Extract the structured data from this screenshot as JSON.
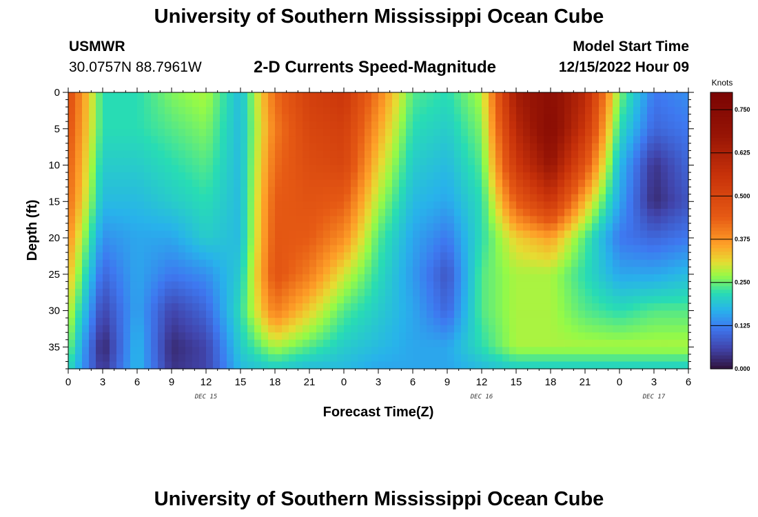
{
  "header": {
    "title": "University of Southern Mississippi Ocean Cube",
    "station": "USMWR",
    "coords": "30.0757N  88.7961W",
    "subtitle": "2-D Currents Speed-Magnitude",
    "model_label": "Model Start Time",
    "model_time": "12/15/2022 Hour 09"
  },
  "footer": {
    "title": "University of Southern Mississippi Ocean Cube"
  },
  "chart_data": {
    "type": "heatmap",
    "title": "2-D Currents Speed-Magnitude",
    "xlabel": "Forecast Time(Z)",
    "ylabel": "Depth (ft)",
    "x_hours_since_model_start": [
      0,
      3,
      6,
      9,
      12,
      15,
      18,
      21,
      24,
      27,
      30,
      33,
      36,
      39,
      42,
      45,
      48,
      51,
      54
    ],
    "x_tick_labels": [
      "0",
      "3",
      "6",
      "9",
      "12",
      "15",
      "18",
      "21",
      "0",
      "3",
      "6",
      "9",
      "12",
      "15",
      "18",
      "21",
      "0",
      "3",
      "6"
    ],
    "date_labels": [
      {
        "text": "DEC 15",
        "at_hour": 12
      },
      {
        "text": "DEC 16",
        "at_hour": 36
      },
      {
        "text": "DEC 17",
        "at_hour": 51
      }
    ],
    "y_ticks": [
      0,
      5,
      10,
      15,
      20,
      25,
      30,
      35
    ],
    "y_tick_labels": [
      "0",
      "5",
      "10",
      "15",
      "20",
      "25",
      "30",
      "35"
    ],
    "ylim": [
      0,
      38
    ],
    "y_inverted": true,
    "colorbar": {
      "title": "Knots",
      "range": [
        0,
        0.8
      ],
      "ticks": [
        0.0,
        0.125,
        0.25,
        0.375,
        0.5,
        0.625,
        0.75
      ],
      "tick_labels": [
        "0.000",
        "0.125",
        "0.250",
        "0.375",
        "0.500",
        "0.625",
        "0.750"
      ]
    },
    "speed_knots_by_depth": {
      "depths": [
        0,
        5,
        10,
        15,
        20,
        25,
        30,
        35,
        38
      ],
      "hours": [
        0,
        3,
        6,
        9,
        12,
        15,
        18,
        21,
        24,
        27,
        30,
        33,
        36,
        39,
        42,
        45,
        48,
        51,
        54
      ],
      "values": [
        [
          0.48,
          0.22,
          0.22,
          0.26,
          0.28,
          0.18,
          0.42,
          0.52,
          0.55,
          0.4,
          0.24,
          0.22,
          0.28,
          0.65,
          0.72,
          0.6,
          0.26,
          0.12,
          0.14
        ],
        [
          0.46,
          0.22,
          0.22,
          0.24,
          0.26,
          0.18,
          0.4,
          0.5,
          0.52,
          0.36,
          0.22,
          0.2,
          0.26,
          0.6,
          0.74,
          0.55,
          0.22,
          0.1,
          0.12
        ],
        [
          0.44,
          0.2,
          0.2,
          0.22,
          0.24,
          0.18,
          0.42,
          0.48,
          0.5,
          0.32,
          0.2,
          0.18,
          0.24,
          0.54,
          0.68,
          0.46,
          0.18,
          0.04,
          0.1
        ],
        [
          0.42,
          0.18,
          0.18,
          0.2,
          0.22,
          0.18,
          0.44,
          0.46,
          0.44,
          0.28,
          0.18,
          0.16,
          0.22,
          0.44,
          0.55,
          0.34,
          0.16,
          0.03,
          0.08
        ],
        [
          0.38,
          0.14,
          0.16,
          0.16,
          0.2,
          0.18,
          0.45,
          0.44,
          0.38,
          0.24,
          0.16,
          0.12,
          0.22,
          0.32,
          0.36,
          0.24,
          0.12,
          0.1,
          0.12
        ],
        [
          0.34,
          0.1,
          0.16,
          0.12,
          0.14,
          0.2,
          0.46,
          0.4,
          0.3,
          0.22,
          0.15,
          0.08,
          0.24,
          0.28,
          0.28,
          0.22,
          0.16,
          0.16,
          0.18
        ],
        [
          0.3,
          0.06,
          0.16,
          0.06,
          0.1,
          0.22,
          0.4,
          0.32,
          0.24,
          0.2,
          0.16,
          0.1,
          0.24,
          0.28,
          0.28,
          0.24,
          0.22,
          0.24,
          0.24
        ],
        [
          0.26,
          0.02,
          0.18,
          0.03,
          0.06,
          0.2,
          0.28,
          0.24,
          0.2,
          0.18,
          0.16,
          0.16,
          0.22,
          0.28,
          0.28,
          0.28,
          0.28,
          0.28,
          0.28
        ],
        [
          0.22,
          0.04,
          0.18,
          0.04,
          0.06,
          0.18,
          0.2,
          0.18,
          0.18,
          0.16,
          0.16,
          0.16,
          0.18,
          0.2,
          0.2,
          0.2,
          0.2,
          0.2,
          0.2
        ]
      ]
    }
  }
}
